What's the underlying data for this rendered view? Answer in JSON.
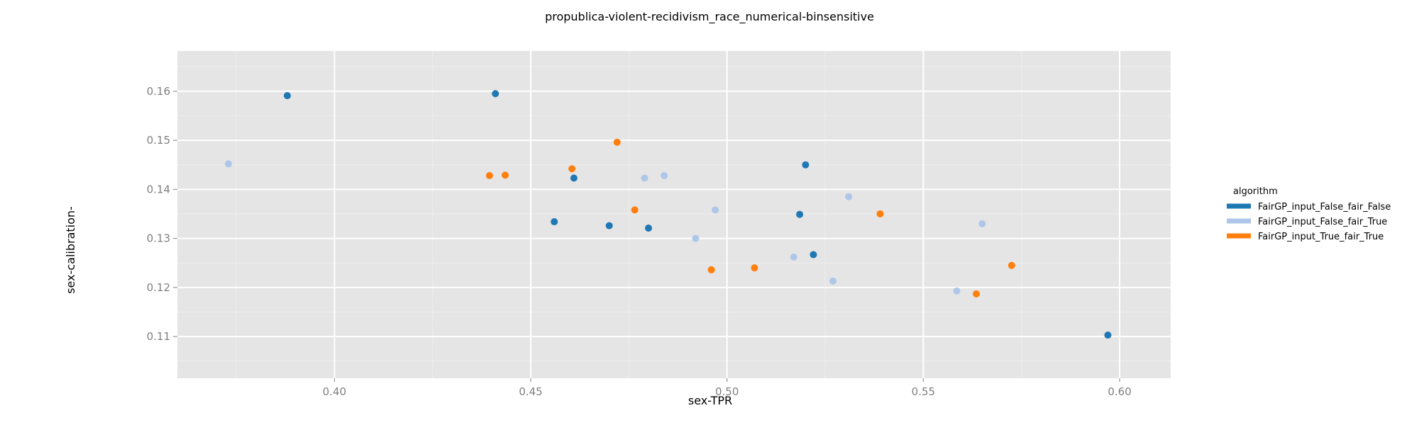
{
  "chart_data": {
    "type": "scatter",
    "title": "propublica-violent-recidivism_race_numerical-binsensitive",
    "xlabel": "sex-TPR",
    "ylabel": "sex-calibration-",
    "xlim": [
      0.36,
      0.613
    ],
    "ylim": [
      0.1015,
      0.1682
    ],
    "x_ticks": [
      0.4,
      0.45,
      0.5,
      0.55,
      0.6
    ],
    "x_tick_labels": [
      "0.40",
      "0.45",
      "0.50",
      "0.55",
      "0.60"
    ],
    "y_ticks": [
      0.11,
      0.12,
      0.13,
      0.14,
      0.15,
      0.16
    ],
    "y_tick_labels": [
      "0.11",
      "0.12",
      "0.13",
      "0.14",
      "0.15",
      "0.16"
    ],
    "grid": true,
    "legend": {
      "title": "algorithm",
      "placement": "right"
    },
    "series": [
      {
        "name": "FairGP_input_False_fair_False",
        "color": "#1f77b4",
        "points": [
          [
            0.388,
            0.1591
          ],
          [
            0.441,
            0.1595
          ],
          [
            0.461,
            0.1423
          ],
          [
            0.456,
            0.1334
          ],
          [
            0.47,
            0.1326
          ],
          [
            0.48,
            0.1321
          ],
          [
            0.52,
            0.145
          ],
          [
            0.5185,
            0.1349
          ],
          [
            0.522,
            0.1267
          ],
          [
            0.597,
            0.1103
          ]
        ]
      },
      {
        "name": "FairGP_input_False_fair_True",
        "color": "#aec7e8",
        "points": [
          [
            0.373,
            0.1452
          ],
          [
            0.479,
            0.1423
          ],
          [
            0.484,
            0.1428
          ],
          [
            0.497,
            0.1358
          ],
          [
            0.492,
            0.13
          ],
          [
            0.517,
            0.1262
          ],
          [
            0.531,
            0.1385
          ],
          [
            0.527,
            0.1213
          ],
          [
            0.565,
            0.133
          ],
          [
            0.5585,
            0.1193
          ]
        ]
      },
      {
        "name": "FairGP_input_True_fair_True",
        "color": "#ff7f0e",
        "points": [
          [
            0.4395,
            0.1428
          ],
          [
            0.4435,
            0.1429
          ],
          [
            0.4605,
            0.1442
          ],
          [
            0.472,
            0.1496
          ],
          [
            0.4765,
            0.1358
          ],
          [
            0.496,
            0.1236
          ],
          [
            0.507,
            0.124
          ],
          [
            0.539,
            0.135
          ],
          [
            0.5635,
            0.1187
          ],
          [
            0.5725,
            0.1245
          ]
        ]
      }
    ]
  }
}
